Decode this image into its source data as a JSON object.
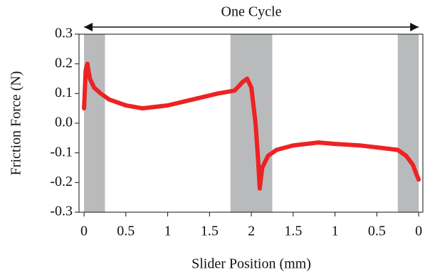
{
  "chart_data": {
    "type": "line",
    "xlabel": "Slider Position (mm)",
    "ylabel": "Friction Force (N)",
    "annotation": {
      "text": "One Cycle",
      "x": [
        0,
        4
      ]
    },
    "shaded_regions": [
      [
        0,
        0.25
      ],
      [
        1.75,
        2.25
      ],
      [
        3.75,
        4
      ]
    ],
    "shade_color": "#b9babc",
    "xlim": [
      -0.06,
      4.05
    ],
    "ylim": [
      -0.3,
      0.3
    ],
    "xticks": [
      0,
      0.5,
      1,
      1.5,
      2,
      {
        "value": 2.5,
        "label": "1.5"
      },
      {
        "value": 3,
        "label": "1"
      },
      {
        "value": 3.5,
        "label": "0.5"
      },
      {
        "value": 4,
        "label": "0"
      }
    ],
    "yticks": [
      0.3,
      0.2,
      0.1,
      {
        "value": 0,
        "label": "0.0"
      },
      -0.1,
      -0.2,
      -0.3
    ],
    "series": [
      {
        "name": "Friction Force",
        "color": "#ee2222",
        "x": [
          0,
          0.02,
          0.04,
          0.07,
          0.12,
          0.2,
          0.3,
          0.5,
          0.7,
          1.0,
          1.3,
          1.6,
          1.8,
          1.9,
          1.95,
          2.0,
          2.05,
          2.08,
          2.1,
          2.13,
          2.2,
          2.3,
          2.5,
          2.8,
          3.0,
          3.3,
          3.6,
          3.75,
          3.85,
          3.93,
          3.97,
          4.0
        ],
        "values": [
          0.05,
          0.18,
          0.2,
          0.15,
          0.12,
          0.1,
          0.08,
          0.06,
          0.05,
          0.06,
          0.08,
          0.1,
          0.11,
          0.14,
          0.15,
          0.12,
          0.0,
          -0.12,
          -0.22,
          -0.15,
          -0.11,
          -0.09,
          -0.075,
          -0.065,
          -0.07,
          -0.075,
          -0.085,
          -0.09,
          -0.11,
          -0.14,
          -0.17,
          -0.19
        ]
      }
    ]
  }
}
